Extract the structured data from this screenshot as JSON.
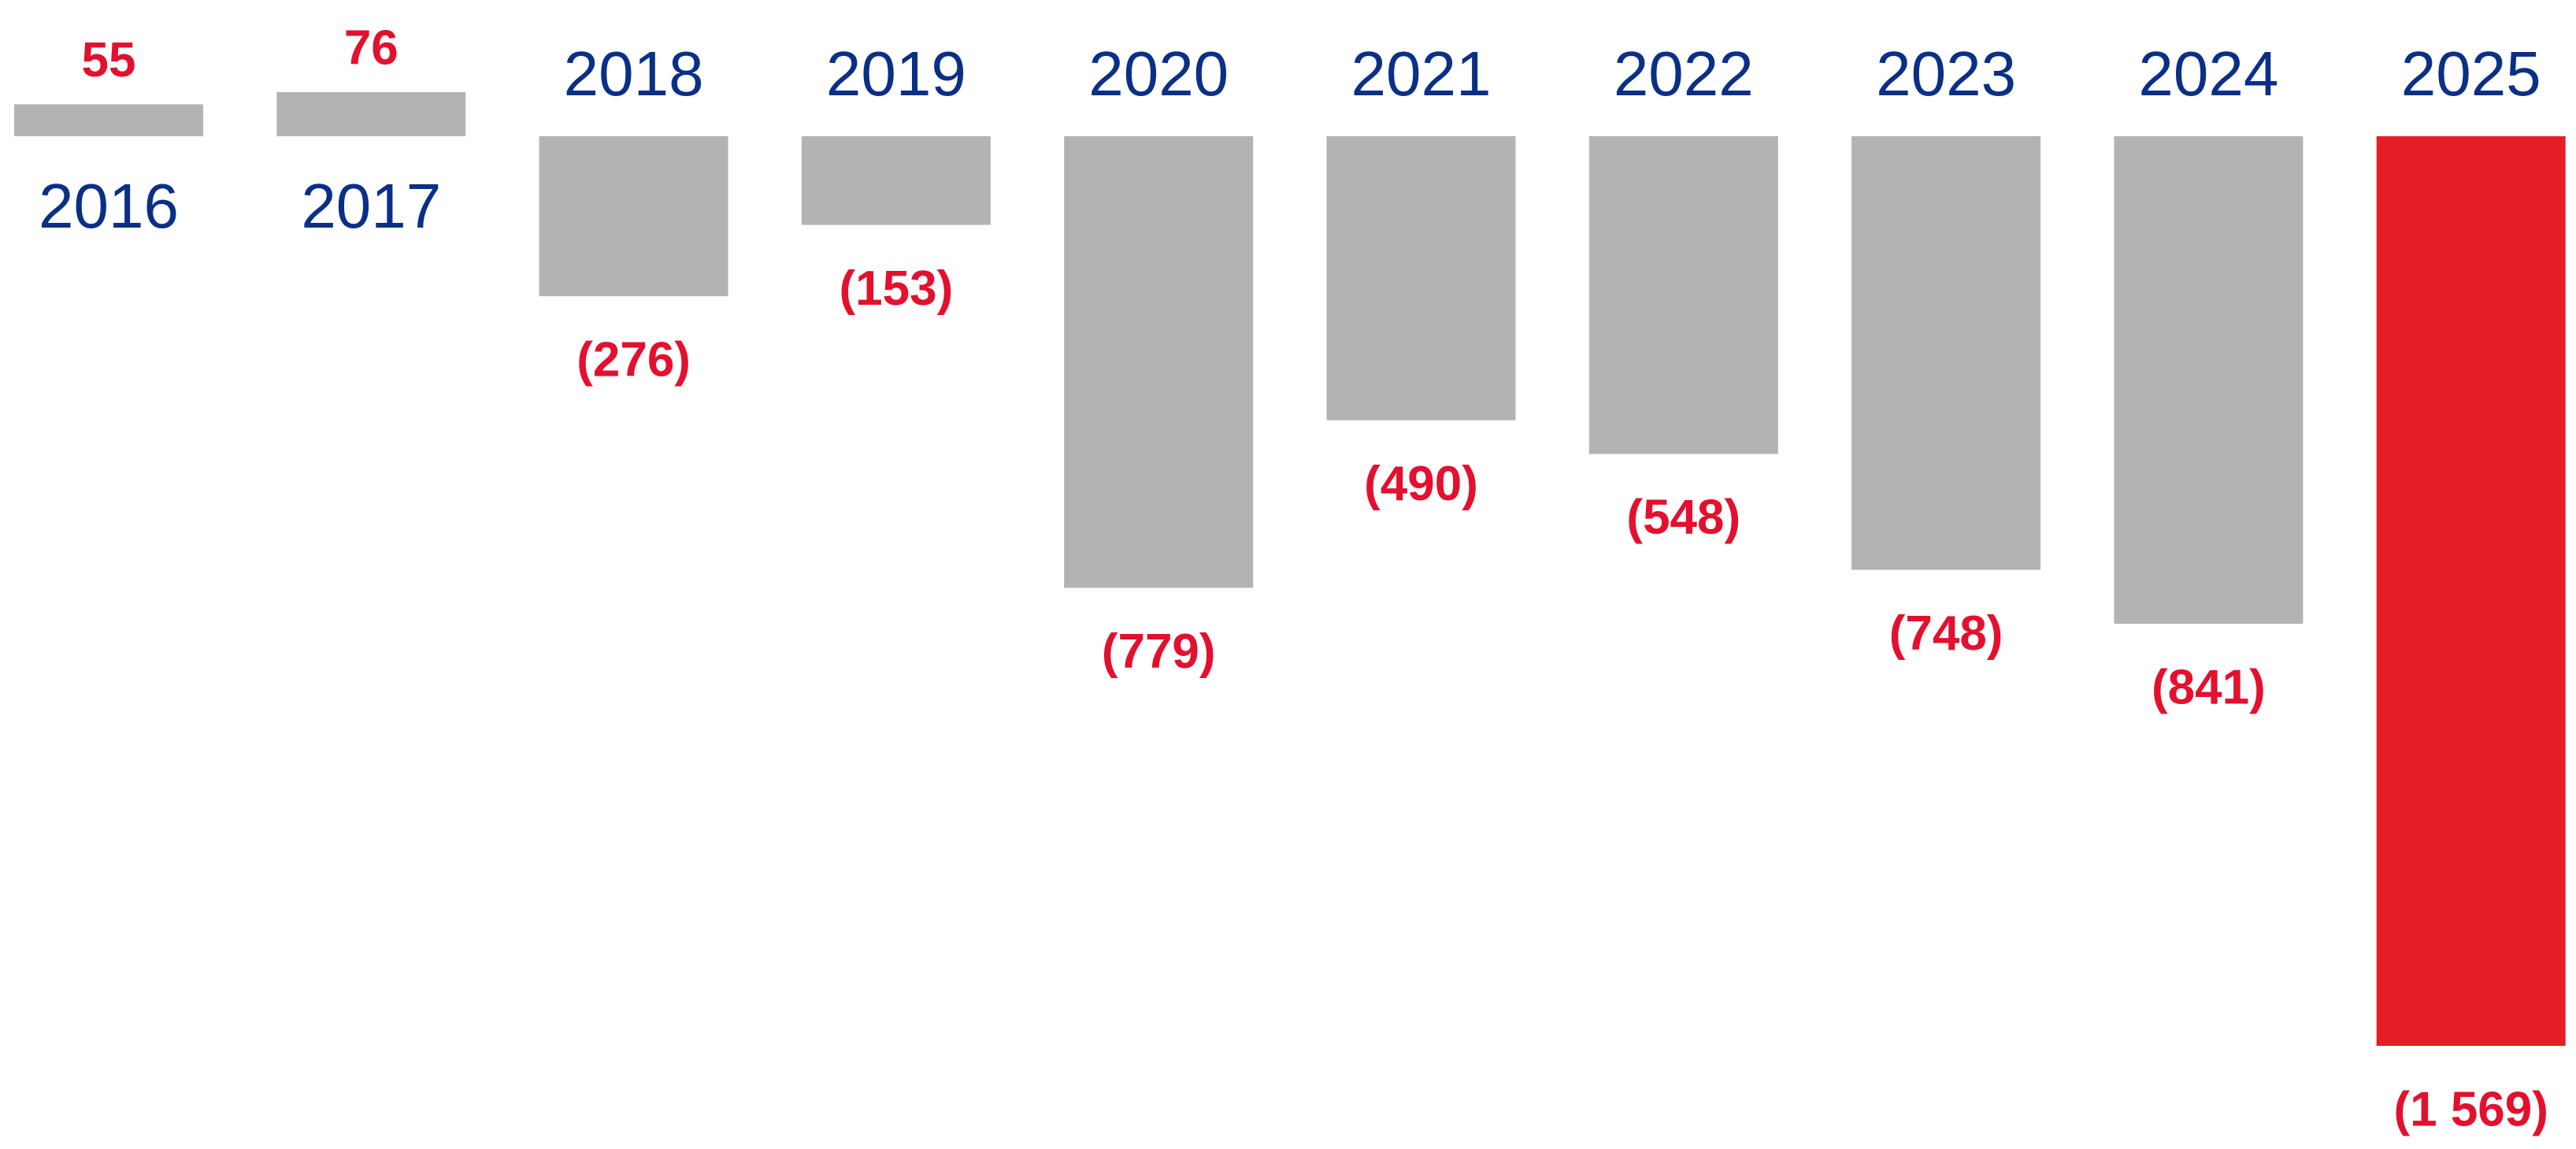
{
  "chart_data": {
    "type": "bar",
    "categories": [
      "2016",
      "2017",
      "2018",
      "2019",
      "2020",
      "2021",
      "2022",
      "2023",
      "2024",
      "2025"
    ],
    "values": [
      55,
      76,
      -276,
      -153,
      -779,
      -490,
      -548,
      -748,
      -841,
      -1569
    ],
    "value_labels": [
      "55",
      "76",
      "(276)",
      "(153)",
      "(779)",
      "(490)",
      "(548)",
      "(748)",
      "(841)",
      "(1 569)"
    ],
    "colors": [
      "#b3b3b3",
      "#b3b3b3",
      "#b3b3b3",
      "#b3b3b3",
      "#b3b3b3",
      "#b3b3b3",
      "#b3b3b3",
      "#b3b3b3",
      "#b3b3b3",
      "#e31e24"
    ]
  }
}
